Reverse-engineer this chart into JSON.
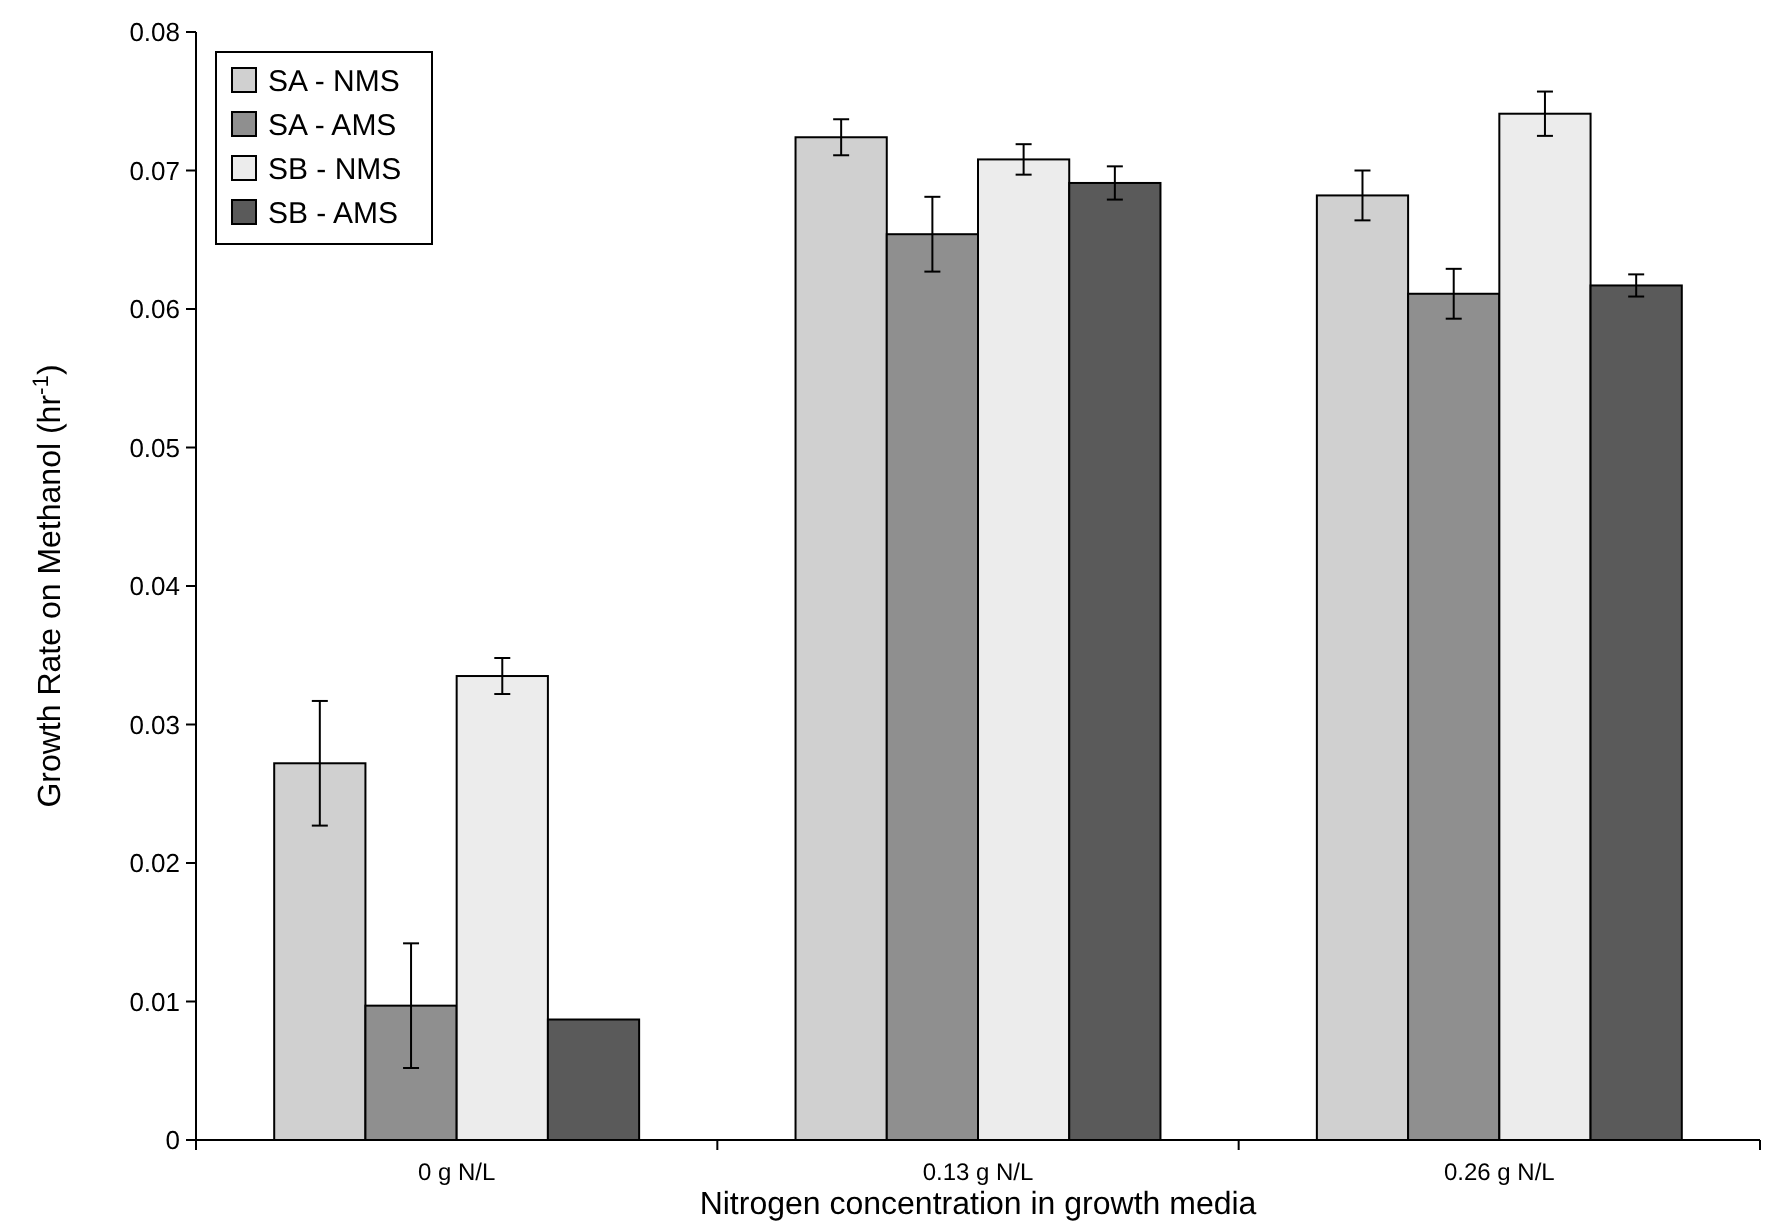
{
  "chart_data": {
    "type": "bar",
    "xlabel": "Nitrogen concentration in growth media",
    "ylabel": "Growth Rate on Methanol (hr$^{-1}$)",
    "categories": [
      "0 g N/L",
      "0.13 g N/L",
      "0.26 g N/L"
    ],
    "series": [
      {
        "name": "SA - NMS",
        "color": "#d0d0d0",
        "values": [
          0.0272,
          0.0724,
          0.0682
        ],
        "errors": [
          0.0045,
          0.0013,
          0.0018
        ]
      },
      {
        "name": "SA - AMS",
        "color": "#8f8f8f",
        "values": [
          0.0097,
          0.0654,
          0.0611
        ],
        "errors": [
          0.0045,
          0.0027,
          0.0018
        ]
      },
      {
        "name": "SB - NMS",
        "color": "#ececec",
        "values": [
          0.0335,
          0.0708,
          0.0741
        ],
        "errors": [
          0.0013,
          0.0011,
          0.0016
        ]
      },
      {
        "name": "SB - AMS",
        "color": "#5a5a5a",
        "values": [
          0.0087,
          0.0691,
          0.0617
        ],
        "errors": [
          null,
          0.0012,
          0.0008
        ]
      }
    ],
    "ylim": [
      0,
      0.08
    ],
    "yticks": [
      {
        "value": 0,
        "label": "0"
      },
      {
        "value": 0.01,
        "label": "0.01"
      },
      {
        "value": 0.02,
        "label": "0.02"
      },
      {
        "value": 0.03,
        "label": "0.03"
      },
      {
        "value": 0.04,
        "label": "0.04"
      },
      {
        "value": 0.05,
        "label": "0.05"
      },
      {
        "value": 0.06,
        "label": "0.06"
      },
      {
        "value": 0.07,
        "label": "0.07"
      },
      {
        "value": 0.08,
        "label": "0.08"
      }
    ],
    "grid": false,
    "legend": "top left"
  }
}
